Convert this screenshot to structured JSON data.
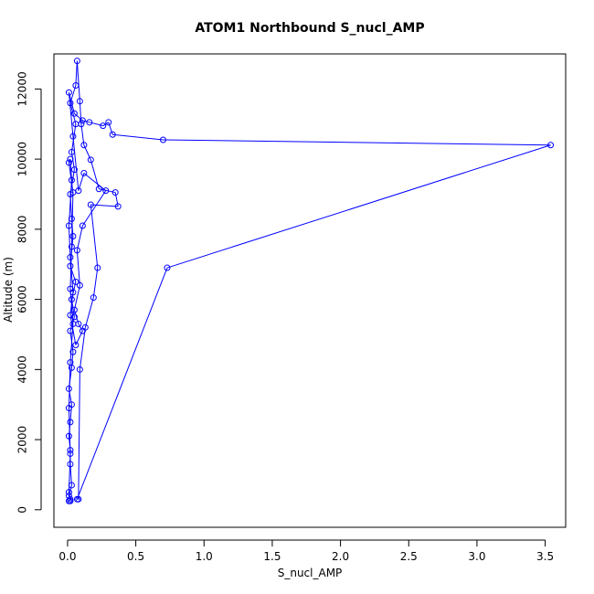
{
  "chart_data": {
    "type": "scatter",
    "title": "ATOM1 Northbound S_nucl_AMP",
    "xlabel": "S_nucl_AMP",
    "ylabel": "Altitude (m)",
    "xlim": [
      -0.1,
      3.65
    ],
    "ylim": [
      -500,
      13000
    ],
    "xticks": [
      "0.0",
      "0.5",
      "1.0",
      "1.5",
      "2.0",
      "2.5",
      "3.0",
      "3.5"
    ],
    "xtick_values": [
      0,
      0.5,
      1.0,
      1.5,
      2.0,
      2.5,
      3.0,
      3.5
    ],
    "yticks": [
      "0",
      "2000",
      "4000",
      "6000",
      "8000",
      "10000",
      "12000"
    ],
    "ytick_values": [
      0,
      2000,
      4000,
      6000,
      8000,
      10000,
      12000
    ],
    "series_style": "points connected by lines",
    "color": "#0000ff",
    "points": [
      {
        "x": 0.01,
        "y": 250
      },
      {
        "x": 0.02,
        "y": 300
      },
      {
        "x": 0.01,
        "y": 400
      },
      {
        "x": 0.03,
        "y": 700
      },
      {
        "x": 0.02,
        "y": 1300
      },
      {
        "x": 0.02,
        "y": 1700
      },
      {
        "x": 0.01,
        "y": 2100
      },
      {
        "x": 0.02,
        "y": 2500
      },
      {
        "x": 0.03,
        "y": 3000
      },
      {
        "x": 0.01,
        "y": 3450
      },
      {
        "x": 0.03,
        "y": 4050
      },
      {
        "x": 0.04,
        "y": 4500
      },
      {
        "x": 0.02,
        "y": 5100
      },
      {
        "x": 0.05,
        "y": 5500
      },
      {
        "x": 0.03,
        "y": 6000
      },
      {
        "x": 0.06,
        "y": 6500
      },
      {
        "x": 0.02,
        "y": 6950
      },
      {
        "x": 0.04,
        "y": 7800
      },
      {
        "x": 0.03,
        "y": 8300
      },
      {
        "x": 0.02,
        "y": 9000
      },
      {
        "x": 0.05,
        "y": 9700
      },
      {
        "x": 0.03,
        "y": 10200
      },
      {
        "x": 0.06,
        "y": 11000
      },
      {
        "x": 0.02,
        "y": 11600
      },
      {
        "x": 0.06,
        "y": 12100
      },
      {
        "x": 0.07,
        "y": 12800
      },
      {
        "x": 0.09,
        "y": 11650
      },
      {
        "x": 0.1,
        "y": 11000
      },
      {
        "x": 0.12,
        "y": 10400
      },
      {
        "x": 0.17,
        "y": 9980
      },
      {
        "x": 0.23,
        "y": 9150
      },
      {
        "x": 0.35,
        "y": 9050
      },
      {
        "x": 0.37,
        "y": 8650
      },
      {
        "x": 0.17,
        "y": 8700
      },
      {
        "x": 0.22,
        "y": 6900
      },
      {
        "x": 0.19,
        "y": 6050
      },
      {
        "x": 0.13,
        "y": 5200
      },
      {
        "x": 0.09,
        "y": 4000
      },
      {
        "x": 0.08,
        "y": 300
      },
      {
        "x": 0.07,
        "y": 300
      },
      {
        "x": 0.73,
        "y": 6900
      },
      {
        "x": 3.54,
        "y": 10400
      },
      {
        "x": 0.7,
        "y": 10550
      },
      {
        "x": 0.33,
        "y": 10700
      },
      {
        "x": 0.3,
        "y": 11050
      },
      {
        "x": 0.26,
        "y": 10950
      },
      {
        "x": 0.16,
        "y": 11050
      },
      {
        "x": 0.11,
        "y": 11100
      },
      {
        "x": 0.05,
        "y": 11300
      },
      {
        "x": 0.01,
        "y": 11900
      },
      {
        "x": 0.04,
        "y": 10650
      },
      {
        "x": 0.08,
        "y": 9100
      },
      {
        "x": 0.12,
        "y": 9600
      },
      {
        "x": 0.28,
        "y": 9100
      },
      {
        "x": 0.11,
        "y": 8100
      },
      {
        "x": 0.07,
        "y": 7400
      },
      {
        "x": 0.09,
        "y": 6400
      },
      {
        "x": 0.05,
        "y": 5700
      },
      {
        "x": 0.08,
        "y": 5300
      },
      {
        "x": 0.11,
        "y": 5100
      },
      {
        "x": 0.06,
        "y": 4700
      },
      {
        "x": 0.02,
        "y": 5550
      },
      {
        "x": 0.04,
        "y": 6200
      },
      {
        "x": 0.02,
        "y": 7200
      },
      {
        "x": 0.01,
        "y": 8100
      },
      {
        "x": 0.03,
        "y": 9400
      },
      {
        "x": 0.02,
        "y": 10000
      },
      {
        "x": 0.01,
        "y": 9900
      },
      {
        "x": 0.04,
        "y": 9050
      },
      {
        "x": 0.03,
        "y": 7500
      },
      {
        "x": 0.02,
        "y": 6300
      },
      {
        "x": 0.04,
        "y": 5300
      },
      {
        "x": 0.02,
        "y": 4200
      },
      {
        "x": 0.01,
        "y": 2900
      },
      {
        "x": 0.02,
        "y": 1600
      },
      {
        "x": 0.01,
        "y": 500
      },
      {
        "x": 0.02,
        "y": 250
      }
    ]
  }
}
